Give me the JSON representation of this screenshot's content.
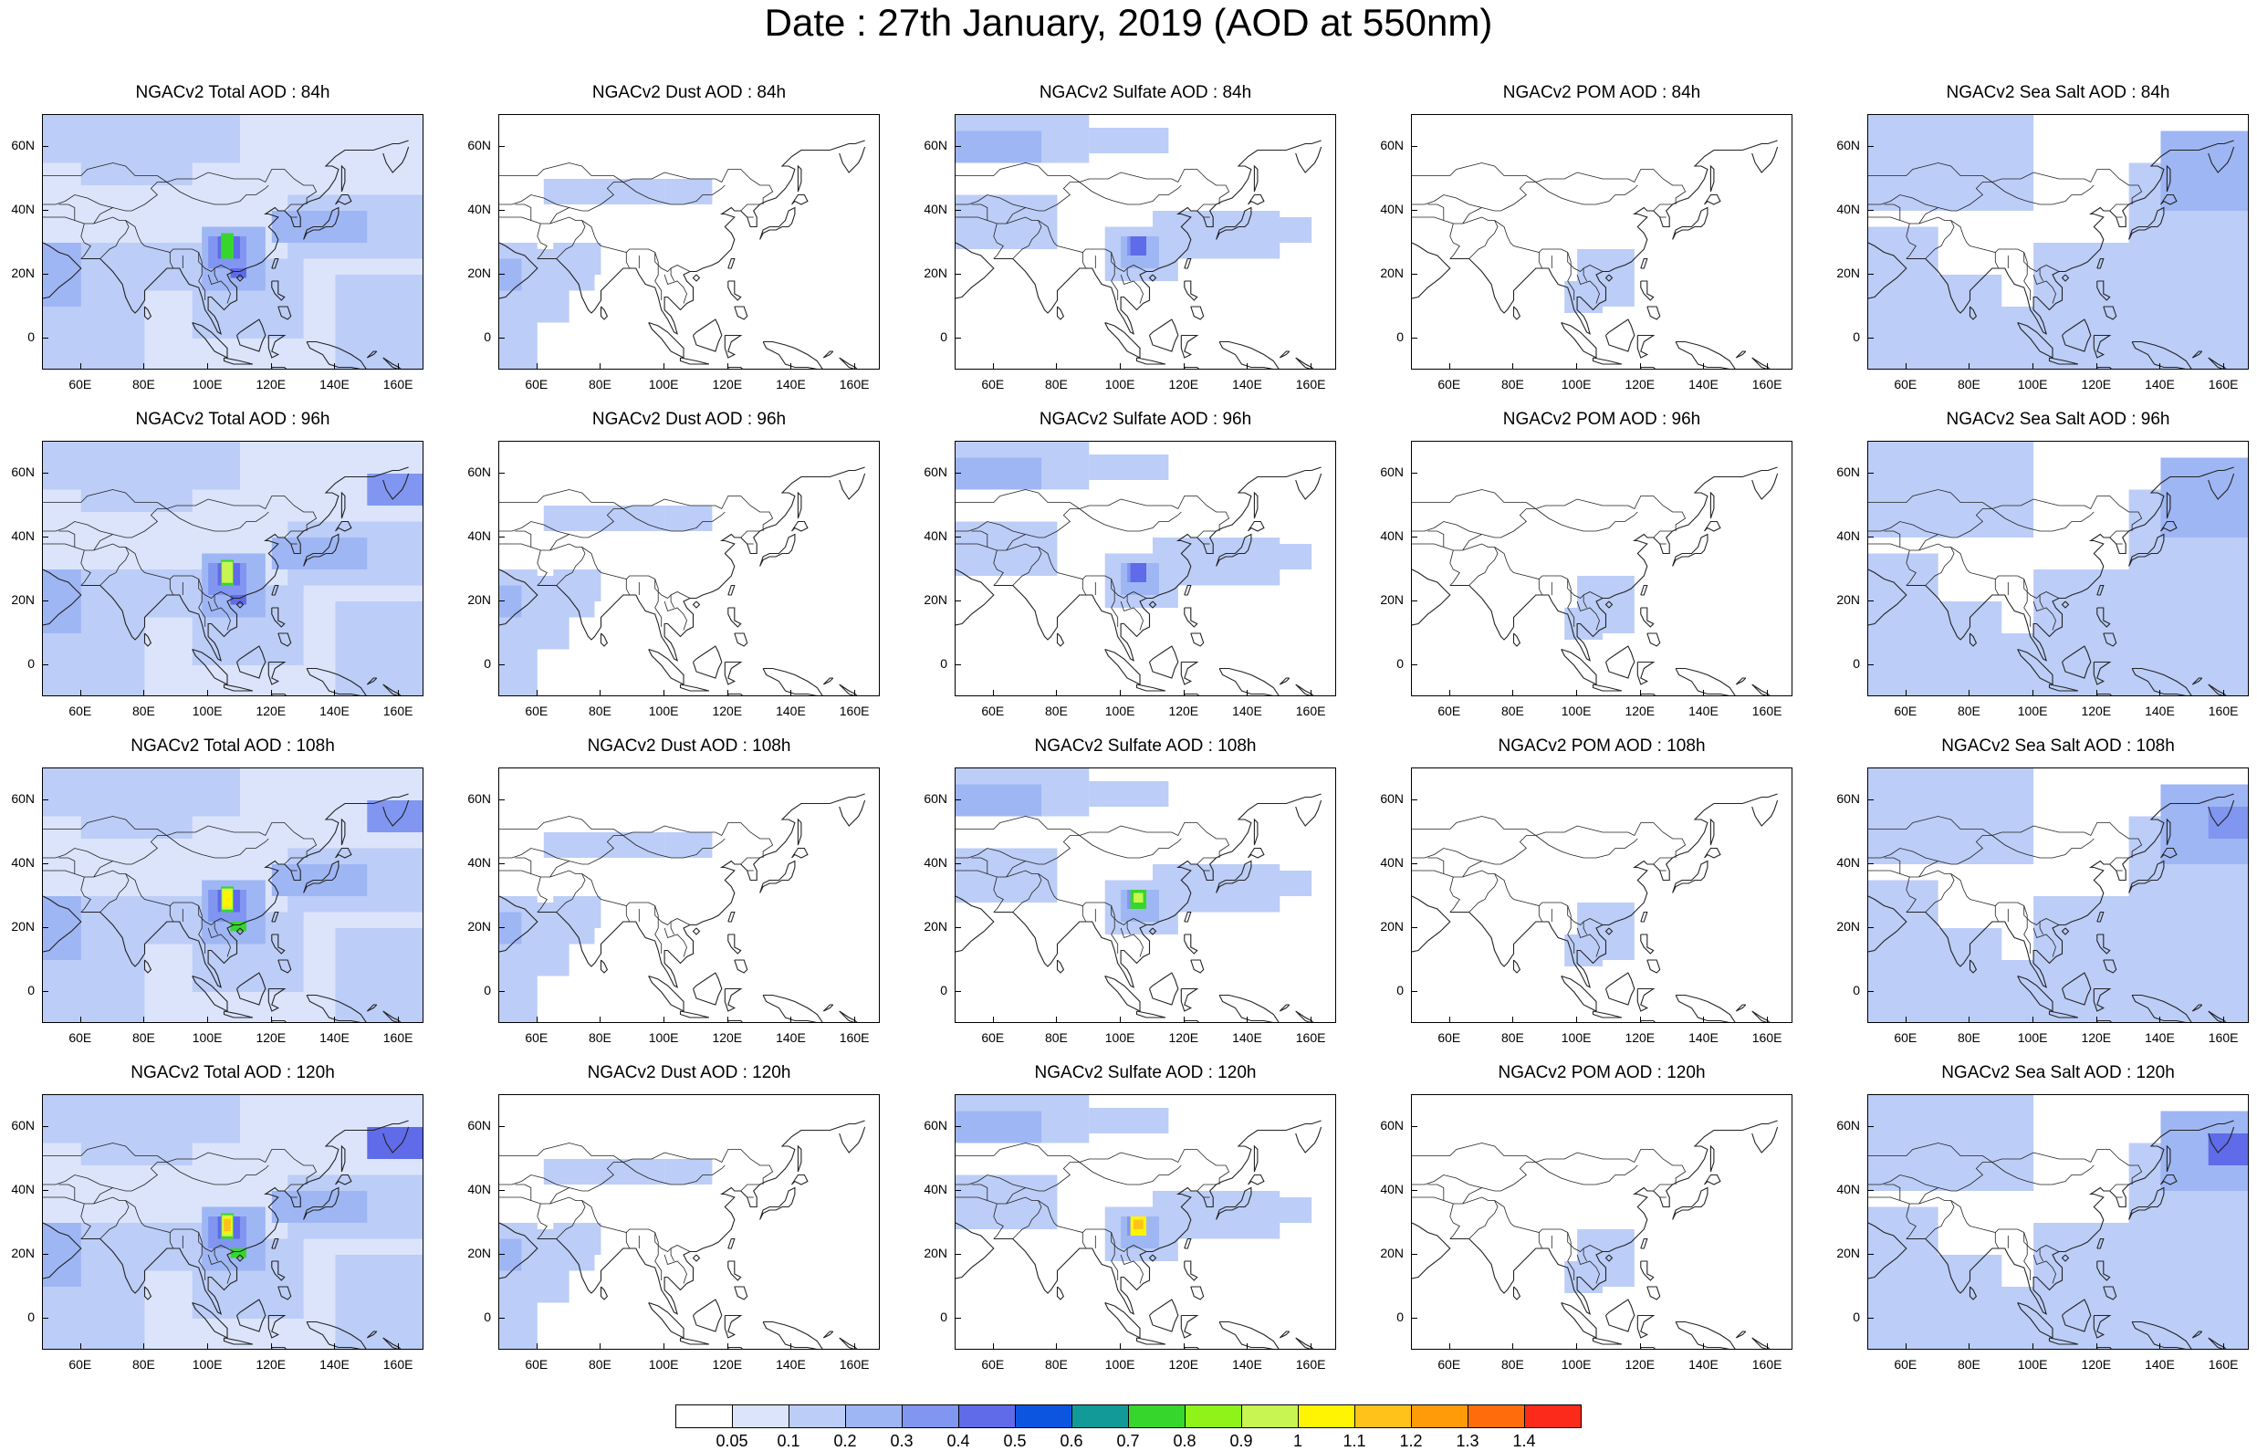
{
  "title": "Date : 27th January, 2019 (AOD at 550nm)",
  "panels": [
    [
      "NGACv2 Total AOD : 84h",
      "NGACv2 Dust AOD : 84h",
      "NGACv2 Sulfate AOD : 84h",
      "NGACv2 POM AOD : 84h",
      "NGACv2 Sea Salt AOD : 84h"
    ],
    [
      "NGACv2 Total AOD : 96h",
      "NGACv2 Dust AOD : 96h",
      "NGACv2 Sulfate AOD : 96h",
      "NGACv2 POM AOD : 96h",
      "NGACv2 Sea Salt AOD : 96h"
    ],
    [
      "NGACv2 Total AOD : 108h",
      "NGACv2 Dust AOD : 108h",
      "NGACv2 Sulfate AOD : 108h",
      "NGACv2 POM AOD : 108h",
      "NGACv2 Sea Salt AOD : 108h"
    ],
    [
      "NGACv2 Total AOD : 120h",
      "NGACv2 Dust AOD : 120h",
      "NGACv2 Sulfate AOD : 120h",
      "NGACv2 POM AOD : 120h",
      "NGACv2 Sea Salt  AOD : 120h"
    ]
  ],
  "lon_ticks": [
    "60E",
    "80E",
    "100E",
    "120E",
    "140E",
    "160E"
  ],
  "lat_ticks": [
    "60N",
    "40N",
    "20N",
    "0"
  ],
  "map_extent": {
    "lon": [
      48,
      168
    ],
    "lat": [
      -10,
      70
    ]
  },
  "colorbar": {
    "labels": [
      "0.05",
      "0.1",
      "0.2",
      "0.3",
      "0.4",
      "0.5",
      "0.6",
      "0.7",
      "0.8",
      "0.9",
      "1",
      "1.1",
      "1.2",
      "1.3",
      "1.4"
    ],
    "colors": [
      "#ffffff",
      "#dbe4fb",
      "#bccdf7",
      "#9fb6f4",
      "#8096f0",
      "#5f6be8",
      "#0c55e0",
      "#119a97",
      "#37d62d",
      "#8ff31a",
      "#c8f551",
      "#fff502",
      "#ffc21a",
      "#ff9a09",
      "#fe6d0b",
      "#fb2a1a"
    ]
  }
}
